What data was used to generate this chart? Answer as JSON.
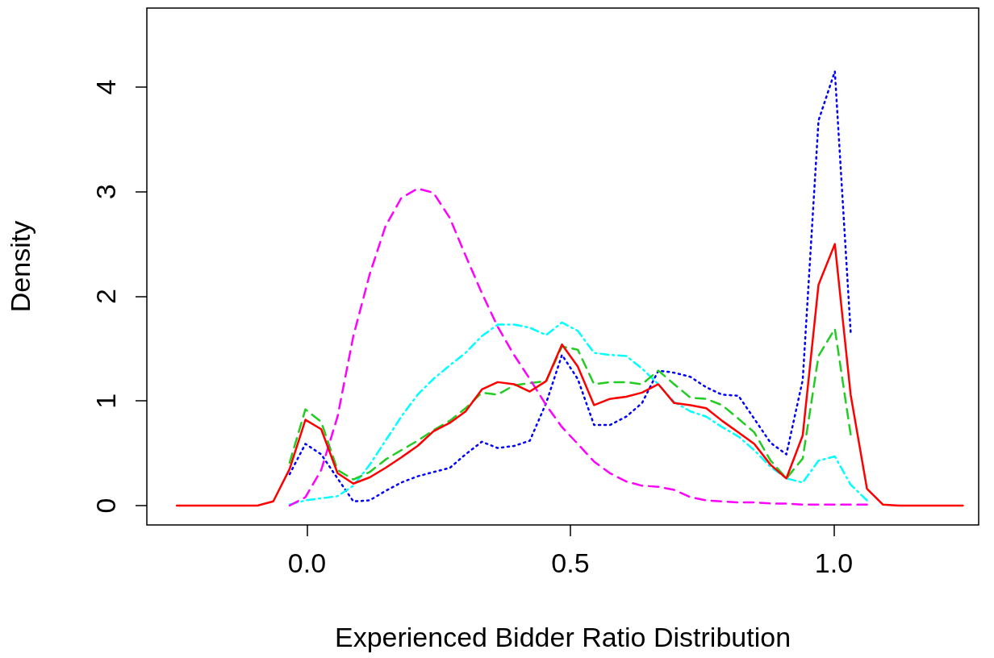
{
  "chart_data": {
    "type": "line",
    "xlabel": "Experienced Bidder Ratio Distribution",
    "ylabel": "Density",
    "x": [
      -0.247,
      -0.216,
      -0.186,
      -0.155,
      -0.125,
      -0.094,
      -0.064,
      -0.033,
      -0.003,
      0.027,
      0.058,
      0.088,
      0.119,
      0.149,
      0.179,
      0.21,
      0.24,
      0.271,
      0.301,
      0.332,
      0.362,
      0.393,
      0.423,
      0.454,
      0.484,
      0.514,
      0.545,
      0.575,
      0.606,
      0.636,
      0.667,
      0.697,
      0.728,
      0.758,
      0.788,
      0.819,
      0.849,
      0.88,
      0.91,
      0.941,
      0.971,
      1.002,
      1.032,
      1.063,
      1.093,
      1.123,
      1.154,
      1.184,
      1.215,
      1.245
    ],
    "series": [
      {
        "color": "#0000ff",
        "line_style": "dotted",
        "values": [
          null,
          null,
          null,
          null,
          null,
          null,
          null,
          0.3,
          0.59,
          0.49,
          0.26,
          0.04,
          0.05,
          0.14,
          0.22,
          0.28,
          0.32,
          0.36,
          0.49,
          0.61,
          0.55,
          0.57,
          0.62,
          0.98,
          1.44,
          1.21,
          0.77,
          0.77,
          0.85,
          0.98,
          1.29,
          1.27,
          1.23,
          1.13,
          1.06,
          1.05,
          0.83,
          0.6,
          0.49,
          1.2,
          3.68,
          4.15,
          1.66,
          null,
          null,
          null,
          null,
          null,
          null,
          null
        ]
      },
      {
        "color": "#00ffff",
        "line_style": "dashdot",
        "values": [
          null,
          null,
          null,
          null,
          null,
          null,
          null,
          0.01,
          0.05,
          0.07,
          0.09,
          0.19,
          0.39,
          0.62,
          0.85,
          1.06,
          1.21,
          1.34,
          1.46,
          1.62,
          1.73,
          1.73,
          1.7,
          1.63,
          1.75,
          1.67,
          1.46,
          1.44,
          1.43,
          1.31,
          1.16,
          0.99,
          0.9,
          0.85,
          0.75,
          0.66,
          0.53,
          0.37,
          0.26,
          0.22,
          0.43,
          0.47,
          0.2,
          0.05,
          null,
          null,
          null,
          null,
          null,
          null
        ]
      },
      {
        "color": "#22cc22",
        "line_style": "dashed",
        "values": [
          null,
          null,
          null,
          null,
          null,
          null,
          null,
          0.41,
          0.92,
          0.8,
          0.34,
          0.25,
          0.32,
          0.44,
          0.53,
          0.62,
          0.72,
          0.81,
          0.93,
          1.08,
          1.06,
          1.15,
          1.17,
          1.19,
          1.52,
          1.49,
          1.16,
          1.18,
          1.18,
          1.16,
          1.29,
          1.16,
          1.03,
          1.02,
          0.96,
          0.83,
          0.7,
          0.43,
          0.26,
          0.45,
          1.43,
          1.69,
          0.68,
          null,
          null,
          null,
          null,
          null,
          null,
          null
        ]
      },
      {
        "color": "#ff00ff",
        "line_style": "dashed",
        "values": [
          null,
          null,
          null,
          null,
          null,
          null,
          null,
          0,
          0.08,
          0.34,
          0.85,
          1.62,
          2.21,
          2.67,
          2.94,
          3.03,
          2.99,
          2.75,
          2.39,
          2.03,
          1.71,
          1.44,
          1.21,
          0.96,
          0.75,
          0.59,
          0.42,
          0.31,
          0.23,
          0.19,
          0.18,
          0.15,
          0.08,
          0.05,
          0.04,
          0.03,
          0.03,
          0.02,
          0.02,
          0.01,
          0.01,
          0.01,
          0.01,
          0.01,
          null,
          null,
          null,
          null,
          null,
          null
        ]
      },
      {
        "color": "#ff0000",
        "line_style": "solid",
        "values": [
          0,
          0,
          0,
          0,
          0,
          0,
          0.04,
          0.35,
          0.82,
          0.73,
          0.31,
          0.21,
          0.27,
          0.36,
          0.46,
          0.57,
          0.71,
          0.79,
          0.9,
          1.11,
          1.18,
          1.16,
          1.09,
          1.19,
          1.54,
          1.33,
          0.96,
          1.02,
          1.04,
          1.08,
          1.16,
          0.98,
          0.96,
          0.93,
          0.81,
          0.7,
          0.59,
          0.39,
          0.26,
          0.67,
          2.11,
          2.5,
          1.06,
          0.16,
          0.01,
          0,
          0,
          0,
          0,
          0
        ]
      }
    ],
    "xlim": [
      -0.304,
      1.275
    ],
    "xticks": [
      {
        "value": 0,
        "label": "0.0"
      },
      {
        "value": 0.5,
        "label": "0.5"
      },
      {
        "value": 1,
        "label": "1.0"
      }
    ],
    "ylim": [
      -0.185,
      4.755
    ],
    "yticks": [
      0,
      1,
      2,
      3,
      4
    ],
    "grid": false,
    "marker": "none"
  }
}
